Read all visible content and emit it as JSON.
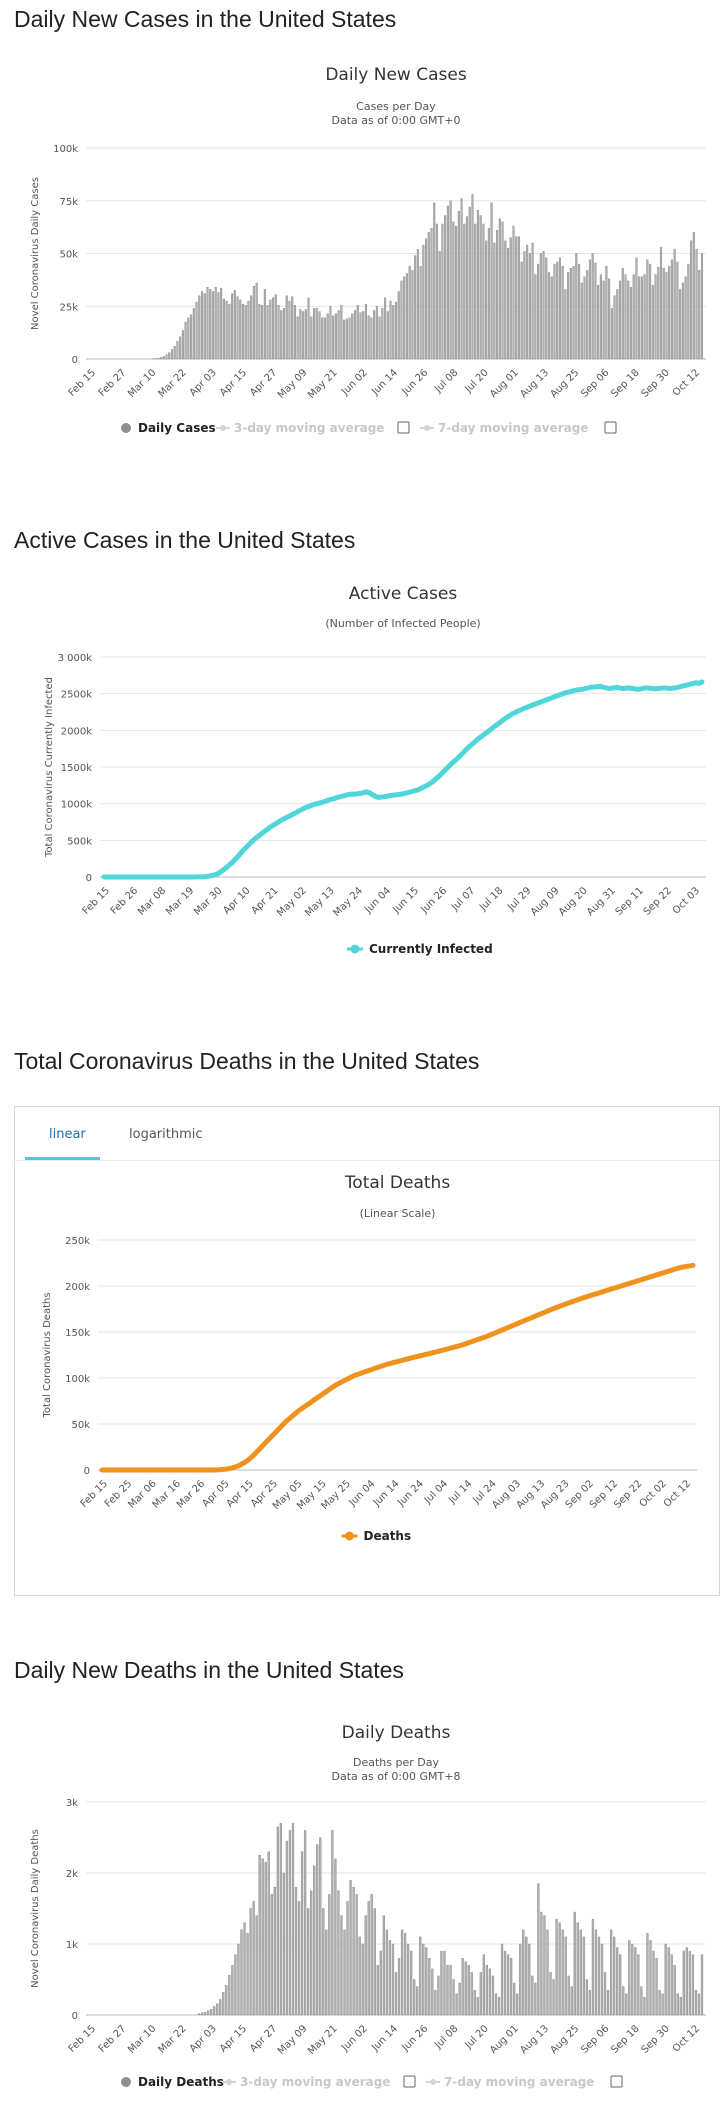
{
  "sections": {
    "daily_cases_title": "Daily New Cases in the United States",
    "active_cases_title": "Active Cases in the United States",
    "total_deaths_title": "Total Coronavirus Deaths in the United States",
    "daily_deaths_title": "Daily New Deaths in the United States"
  },
  "deaths_tabs": {
    "linear": "linear",
    "logarithmic": "logarithmic"
  },
  "chart_data": [
    {
      "id": "daily_cases",
      "type": "bar",
      "title": "Daily New Cases",
      "subtitle1": "Cases per Day",
      "subtitle2": "Data as of 0:00 GMT+0",
      "ylabel": "Novel Coronavirus Daily Cases",
      "ylim": [
        0,
        100000
      ],
      "yticks": [
        "0",
        "25k",
        "50k",
        "75k",
        "100k"
      ],
      "xticks": [
        "Feb 15",
        "Feb 27",
        "Mar 10",
        "Mar 22",
        "Apr 03",
        "Apr 15",
        "Apr 27",
        "May 09",
        "May 21",
        "Jun 02",
        "Jun 14",
        "Jun 26",
        "Jul 08",
        "Jul 20",
        "Aug 01",
        "Aug 13",
        "Aug 25",
        "Sep 06",
        "Sep 18",
        "Sep 30",
        "Oct 12"
      ],
      "legend": [
        {
          "label": "Daily Cases",
          "active": true
        },
        {
          "label": "3-day moving average",
          "active": false
        },
        {
          "label": "7-day moving average",
          "active": false
        }
      ],
      "color": "#999999",
      "grid": true,
      "values": [
        0,
        0,
        0,
        0,
        0,
        0,
        0,
        0,
        0,
        0,
        0,
        0,
        0,
        0,
        0,
        0,
        0,
        0,
        0,
        0,
        0,
        0,
        0,
        100,
        200,
        400,
        700,
        1200,
        2000,
        3000,
        4500,
        6000,
        8500,
        10500,
        13500,
        17500,
        19500,
        21000,
        24000,
        27000,
        30000,
        32000,
        31000,
        34000,
        33000,
        32000,
        34000,
        31500,
        33500,
        28500,
        27500,
        26000,
        31000,
        32500,
        29500,
        28000,
        26000,
        25500,
        27500,
        30000,
        34500,
        36000,
        26000,
        25500,
        33000,
        25500,
        28000,
        29000,
        30500,
        25500,
        23000,
        24000,
        30000,
        27500,
        29500,
        25500,
        20000,
        23500,
        22500,
        23500,
        29000,
        20000,
        24000,
        24000,
        22500,
        19500,
        19500,
        21500,
        25000,
        20500,
        21500,
        23000,
        25500,
        18500,
        19000,
        19500,
        21500,
        23000,
        25500,
        22000,
        22500,
        26000,
        20500,
        19500,
        23000,
        25000,
        20000,
        24000,
        29000,
        22500,
        27500,
        25500,
        27000,
        32000,
        37000,
        39000,
        40500,
        44000,
        42000,
        49000,
        52000,
        44000,
        54000,
        57000,
        60000,
        62000,
        74000,
        64000,
        51000,
        64000,
        68000,
        72500,
        75000,
        65000,
        63000,
        70000,
        76000,
        64000,
        67500,
        72000,
        78000,
        64000,
        70500,
        68000,
        64000,
        56000,
        62000,
        74000,
        55000,
        61000,
        66500,
        65000,
        56000,
        52500,
        57500,
        63000,
        58000,
        58000,
        46000,
        51000,
        54000,
        50000,
        55000,
        40000,
        45000,
        50000,
        51000,
        48000,
        41000,
        39000,
        45000,
        46000,
        48000,
        44000,
        33000,
        41000,
        43000,
        44000,
        50000,
        45000,
        36000,
        39000,
        42000,
        47000,
        50000,
        45500,
        35000,
        40000,
        37000,
        44000,
        38000,
        24000,
        30000,
        33000,
        37000,
        43000,
        40000,
        37000,
        34000,
        40000,
        48000,
        39000,
        39000,
        40000,
        47000,
        45000,
        35000,
        40000,
        43500,
        53000,
        43000,
        41000,
        44000,
        47000,
        52000,
        46000,
        33000,
        36000,
        39000,
        45000,
        56000,
        60000,
        52000,
        42000,
        50000
      ]
    },
    {
      "id": "active_cases",
      "type": "line",
      "title": "Active Cases",
      "subtitle1": "(Number of Infected People)",
      "ylabel": "Total Coronavirus Currently Infected",
      "ylim": [
        0,
        3000000
      ],
      "yticks": [
        "0",
        "500k",
        "1000k",
        "1500k",
        "2000k",
        "2500k",
        "3 000k"
      ],
      "xticks": [
        "Feb 15",
        "Feb 26",
        "Mar 08",
        "Mar 19",
        "Mar 30",
        "Apr 10",
        "Apr 21",
        "May 02",
        "May 13",
        "May 24",
        "Jun 04",
        "Jun 15",
        "Jun 26",
        "Jul 07",
        "Jul 18",
        "Jul 29",
        "Aug 09",
        "Aug 20",
        "Aug 31",
        "Sep 11",
        "Sep 22",
        "Oct 03"
      ],
      "legend": [
        {
          "label": "Currently Infected",
          "active": true
        }
      ],
      "color": "#50d5d8",
      "grid": true,
      "values": [
        0,
        0,
        0,
        0,
        0,
        0,
        0,
        0,
        0,
        0,
        0,
        0,
        0,
        0,
        0,
        0,
        0,
        0,
        0,
        0,
        0,
        0,
        0,
        0,
        0,
        0,
        0,
        0,
        0,
        0,
        0,
        0,
        1000,
        2000,
        4000,
        7000,
        12000,
        20000,
        30000,
        45000,
        70000,
        100000,
        130000,
        165000,
        200000,
        240000,
        285000,
        330000,
        375000,
        415000,
        455000,
        495000,
        530000,
        560000,
        590000,
        620000,
        650000,
        680000,
        705000,
        730000,
        755000,
        780000,
        800000,
        820000,
        840000,
        860000,
        880000,
        905000,
        925000,
        945000,
        960000,
        975000,
        990000,
        1000000,
        1010000,
        1020000,
        1035000,
        1050000,
        1060000,
        1070000,
        1085000,
        1095000,
        1105000,
        1115000,
        1125000,
        1130000,
        1130000,
        1135000,
        1140000,
        1150000,
        1160000,
        1150000,
        1120000,
        1100000,
        1085000,
        1090000,
        1095000,
        1100000,
        1110000,
        1115000,
        1120000,
        1125000,
        1130000,
        1140000,
        1150000,
        1160000,
        1170000,
        1180000,
        1195000,
        1215000,
        1235000,
        1255000,
        1280000,
        1310000,
        1345000,
        1380000,
        1420000,
        1460000,
        1500000,
        1540000,
        1575000,
        1610000,
        1650000,
        1690000,
        1730000,
        1770000,
        1805000,
        1840000,
        1875000,
        1905000,
        1935000,
        1965000,
        1995000,
        2025000,
        2055000,
        2085000,
        2115000,
        2145000,
        2175000,
        2200000,
        2225000,
        2245000,
        2265000,
        2280000,
        2300000,
        2315000,
        2330000,
        2345000,
        2360000,
        2375000,
        2390000,
        2405000,
        2420000,
        2435000,
        2450000,
        2465000,
        2480000,
        2495000,
        2510000,
        2520000,
        2530000,
        2540000,
        2550000,
        2555000,
        2560000,
        2570000,
        2580000,
        2590000,
        2590000,
        2595000,
        2600000,
        2590000,
        2580000,
        2570000,
        2575000,
        2580000,
        2585000,
        2575000,
        2570000,
        2575000,
        2580000,
        2570000,
        2565000,
        2560000,
        2565000,
        2575000,
        2580000,
        2575000,
        2570000,
        2565000,
        2570000,
        2575000,
        2580000,
        2575000,
        2570000,
        2575000,
        2580000,
        2590000,
        2600000,
        2610000,
        2620000,
        2630000,
        2640000,
        2650000,
        2640000,
        2660000
      ]
    },
    {
      "id": "total_deaths",
      "type": "line",
      "title": "Total Deaths",
      "subtitle1": "(Linear Scale)",
      "ylabel": "Total Coronavirus Deaths",
      "ylim": [
        0,
        250000
      ],
      "yticks": [
        "0",
        "50k",
        "100k",
        "150k",
        "200k",
        "250k"
      ],
      "xticks": [
        "Feb 15",
        "Feb 25",
        "Mar 06",
        "Mar 16",
        "Mar 26",
        "Apr 05",
        "Apr 15",
        "Apr 25",
        "May 05",
        "May 15",
        "May 25",
        "Jun 04",
        "Jun 14",
        "Jun 24",
        "Jul 04",
        "Jul 14",
        "Jul 24",
        "Aug 03",
        "Aug 13",
        "Aug 23",
        "Sep 02",
        "Sep 12",
        "Sep 22",
        "Oct 02",
        "Oct 12"
      ],
      "legend": [
        {
          "label": "Deaths",
          "active": true
        }
      ],
      "color": "#f0921e",
      "grid": true,
      "values": [
        0,
        0,
        0,
        0,
        0,
        0,
        0,
        0,
        0,
        0,
        0,
        0,
        0,
        0,
        0,
        0,
        0,
        0,
        0,
        0,
        0,
        0,
        0,
        0,
        0,
        0,
        0,
        0,
        0,
        0,
        0,
        0,
        0,
        0,
        0,
        0,
        0,
        0,
        0,
        0,
        0,
        0,
        0,
        100,
        200,
        400,
        700,
        1000,
        1500,
        2200,
        3000,
        4000,
        5300,
        6800,
        8500,
        10500,
        12800,
        15500,
        18500,
        21500,
        24500,
        27500,
        30500,
        33500,
        36500,
        39500,
        42500,
        45500,
        48500,
        51500,
        54000,
        56500,
        59000,
        61500,
        64000,
        66000,
        68000,
        70000,
        72000,
        74000,
        76000,
        78000,
        80000,
        82000,
        84000,
        86000,
        88000,
        90000,
        92000,
        93500,
        95000,
        96500,
        98000,
        99500,
        101000,
        102500,
        103500,
        104500,
        105500,
        106500,
        107500,
        108500,
        109500,
        110500,
        111500,
        112500,
        113500,
        114500,
        115300,
        116000,
        116800,
        117500,
        118300,
        119000,
        119800,
        120500,
        121300,
        122000,
        122700,
        123400,
        124100,
        124800,
        125500,
        126200,
        126900,
        127600,
        128300,
        129000,
        129800,
        130500,
        131300,
        132000,
        132800,
        133600,
        134400,
        135200,
        136100,
        137000,
        138000,
        139000,
        140000,
        141000,
        142000,
        143000,
        144000,
        145000,
        146200,
        147400,
        148600,
        149800,
        151000,
        152200,
        153400,
        154600,
        155800,
        157000,
        158200,
        159400,
        160600,
        161800,
        163000,
        164200,
        165400,
        166600,
        167800,
        169000,
        170200,
        171400,
        172600,
        173800,
        175000,
        176100,
        177200,
        178300,
        179400,
        180500,
        181500,
        182500,
        183500,
        184500,
        185500,
        186500,
        187500,
        188400,
        189300,
        190200,
        191100,
        192000,
        192900,
        193800,
        194700,
        195600,
        196500,
        197400,
        198300,
        199200,
        200100,
        201000,
        201900,
        202800,
        203700,
        204600,
        205500,
        206400,
        207300,
        208200,
        209100,
        210000,
        210900,
        211800,
        212700,
        213600,
        214500,
        215400,
        216300,
        217200,
        218100,
        219000,
        219900,
        220500,
        221000,
        221500,
        222000,
        222500
      ]
    },
    {
      "id": "daily_deaths",
      "type": "bar",
      "title": "Daily Deaths",
      "subtitle1": "Deaths per Day",
      "subtitle2": "Data as of 0:00 GMT+8",
      "ylabel": "Novel Coronavirus Daily Deaths",
      "ylim": [
        0,
        3000
      ],
      "yticks": [
        "0",
        "1k",
        "2k",
        "3k"
      ],
      "xticks": [
        "Feb 15",
        "Feb 27",
        "Mar 10",
        "Mar 22",
        "Apr 03",
        "Apr 15",
        "Apr 27",
        "May 09",
        "May 21",
        "Jun 02",
        "Jun 14",
        "Jun 26",
        "Jul 08",
        "Jul 20",
        "Aug 01",
        "Aug 13",
        "Aug 25",
        "Sep 06",
        "Sep 18",
        "Sep 30",
        "Oct 12"
      ],
      "legend": [
        {
          "label": "Daily Deaths",
          "active": true
        },
        {
          "label": "3-day moving average",
          "active": false
        },
        {
          "label": "7-day moving average",
          "active": false
        }
      ],
      "color": "#999999",
      "grid": true,
      "values": [
        0,
        0,
        0,
        0,
        0,
        0,
        0,
        0,
        0,
        0,
        0,
        0,
        0,
        0,
        0,
        0,
        0,
        0,
        0,
        0,
        0,
        0,
        0,
        0,
        0,
        0,
        0,
        0,
        0,
        0,
        0,
        0,
        0,
        0,
        0,
        0,
        20,
        30,
        40,
        60,
        80,
        120,
        160,
        220,
        320,
        420,
        560,
        700,
        850,
        1000,
        1200,
        1300,
        1150,
        1500,
        1600,
        1400,
        2250,
        2200,
        2150,
        2300,
        1700,
        1800,
        2650,
        2700,
        2000,
        2450,
        2600,
        2700,
        1800,
        1600,
        2300,
        2600,
        1500,
        1750,
        2100,
        2400,
        2500,
        1500,
        1200,
        1700,
        2600,
        2200,
        1750,
        1400,
        1200,
        1600,
        1900,
        1800,
        1700,
        1100,
        1000,
        1400,
        1600,
        1700,
        1500,
        700,
        900,
        1400,
        1200,
        1050,
        1000,
        600,
        800,
        1200,
        1150,
        1000,
        900,
        500,
        400,
        1100,
        1000,
        950,
        800,
        650,
        350,
        550,
        900,
        900,
        700,
        700,
        500,
        300,
        450,
        800,
        750,
        700,
        600,
        350,
        250,
        600,
        850,
        700,
        650,
        550,
        300,
        250,
        1000,
        900,
        850,
        800,
        450,
        300,
        1000,
        1200,
        1100,
        1000,
        550,
        450,
        1850,
        1450,
        1400,
        1200,
        600,
        500,
        1350,
        1300,
        1200,
        1100,
        550,
        400,
        1450,
        1300,
        1200,
        1100,
        500,
        350,
        1350,
        1200,
        1100,
        1000,
        600,
        350,
        1200,
        1100,
        950,
        850,
        400,
        300,
        1050,
        1000,
        950,
        850,
        400,
        250,
        1150,
        1050,
        900,
        800,
        350,
        300,
        1000,
        950,
        850,
        700,
        300,
        250,
        900,
        950,
        900,
        850,
        350,
        300,
        850
      ]
    }
  ]
}
